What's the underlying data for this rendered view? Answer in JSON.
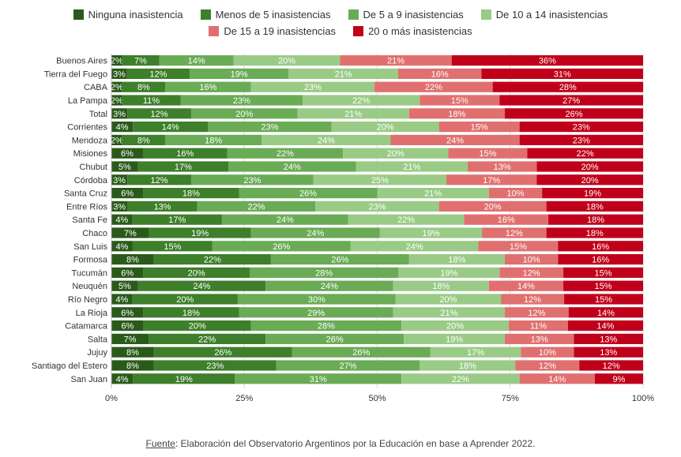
{
  "chart_data": {
    "type": "bar",
    "orientation": "horizontal",
    "stacked": "percent",
    "legend_position": "top",
    "series": [
      {
        "name": "Ninguna inasistencia",
        "color": "#2a5a1a"
      },
      {
        "name": "Menos de 5 inasistencias",
        "color": "#3d7f2a"
      },
      {
        "name": "De 5 a 9 inasistencias",
        "color": "#6aab55"
      },
      {
        "name": "De 10 a 14 inasistencias",
        "color": "#9acb86"
      },
      {
        "name": "De 15 a 19 inasistencias",
        "color": "#e07070"
      },
      {
        "name": "20 o más inasistencias",
        "color": "#c0001a"
      }
    ],
    "categories": [
      "Buenos Aires",
      "Tierra del Fuego",
      "CABA",
      "La Pampa",
      "Total",
      "Corrientes",
      "Mendoza",
      "Misiones",
      "Chubut",
      "Córdoba",
      "Santa Cruz",
      "Entre Ríos",
      "Santa Fe",
      "Chaco",
      "San Luis",
      "Formosa",
      "Tucumán",
      "Neuquén",
      "Río Negro",
      "La Rioja",
      "Catamarca",
      "Salta",
      "Jujuy",
      "Santiago del Estero",
      "San Juan"
    ],
    "values": [
      [
        2,
        7,
        14,
        20,
        21,
        36
      ],
      [
        3,
        12,
        19,
        21,
        16,
        31
      ],
      [
        2,
        8,
        16,
        23,
        22,
        28
      ],
      [
        2,
        11,
        23,
        22,
        15,
        27
      ],
      [
        3,
        12,
        20,
        21,
        18,
        26
      ],
      [
        4,
        14,
        23,
        20,
        15,
        23
      ],
      [
        2,
        8,
        18,
        24,
        24,
        23
      ],
      [
        6,
        16,
        22,
        20,
        15,
        22
      ],
      [
        5,
        17,
        24,
        21,
        13,
        20
      ],
      [
        3,
        12,
        23,
        25,
        17,
        20
      ],
      [
        6,
        18,
        26,
        21,
        10,
        19
      ],
      [
        3,
        13,
        22,
        23,
        20,
        18
      ],
      [
        4,
        17,
        24,
        22,
        16,
        18
      ],
      [
        7,
        19,
        24,
        19,
        12,
        18
      ],
      [
        4,
        15,
        26,
        24,
        15,
        16
      ],
      [
        8,
        22,
        26,
        18,
        10,
        16
      ],
      [
        6,
        20,
        28,
        19,
        12,
        15
      ],
      [
        5,
        24,
        24,
        18,
        14,
        15
      ],
      [
        4,
        20,
        30,
        20,
        12,
        15
      ],
      [
        6,
        18,
        29,
        21,
        12,
        14
      ],
      [
        6,
        20,
        28,
        20,
        11,
        14
      ],
      [
        7,
        22,
        26,
        19,
        13,
        13
      ],
      [
        8,
        26,
        26,
        17,
        10,
        13
      ],
      [
        8,
        23,
        27,
        18,
        12,
        12
      ],
      [
        4,
        19,
        31,
        22,
        14,
        9
      ]
    ],
    "x_ticks": [
      "0%",
      "25%",
      "50%",
      "75%",
      "100%"
    ],
    "xlim": [
      0,
      100
    ]
  },
  "source": {
    "prefix": "Fuente",
    "text": ": Elaboración del Observatorio Argentinos por la Educación en base a Aprender 2022."
  }
}
